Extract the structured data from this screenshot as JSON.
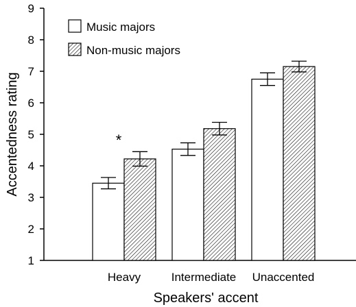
{
  "chart_data": {
    "type": "bar",
    "xlabel": "Speakers' accent",
    "ylabel": "Accentedness rating",
    "ylim": [
      1,
      9
    ],
    "yticks": [
      "1",
      "2",
      "3",
      "4",
      "5",
      "6",
      "7",
      "8",
      "9"
    ],
    "categories": [
      "Heavy",
      "Intermediate",
      "Unaccented"
    ],
    "series": [
      {
        "name": "Music majors",
        "pattern": "open",
        "values": [
          3.45,
          4.53,
          6.75
        ],
        "errors": [
          0.18,
          0.2,
          0.2
        ]
      },
      {
        "name": "Non-music majors",
        "pattern": "hatched",
        "values": [
          4.22,
          5.18,
          7.15
        ],
        "errors": [
          0.23,
          0.2,
          0.17
        ]
      }
    ],
    "annotations": [
      {
        "text": "*",
        "category": "Heavy"
      }
    ],
    "legend_position": "top-left",
    "grid": false,
    "colors": {
      "bar_fill": "#ffffff",
      "stroke": "#000000",
      "hatch": "#000000"
    }
  }
}
